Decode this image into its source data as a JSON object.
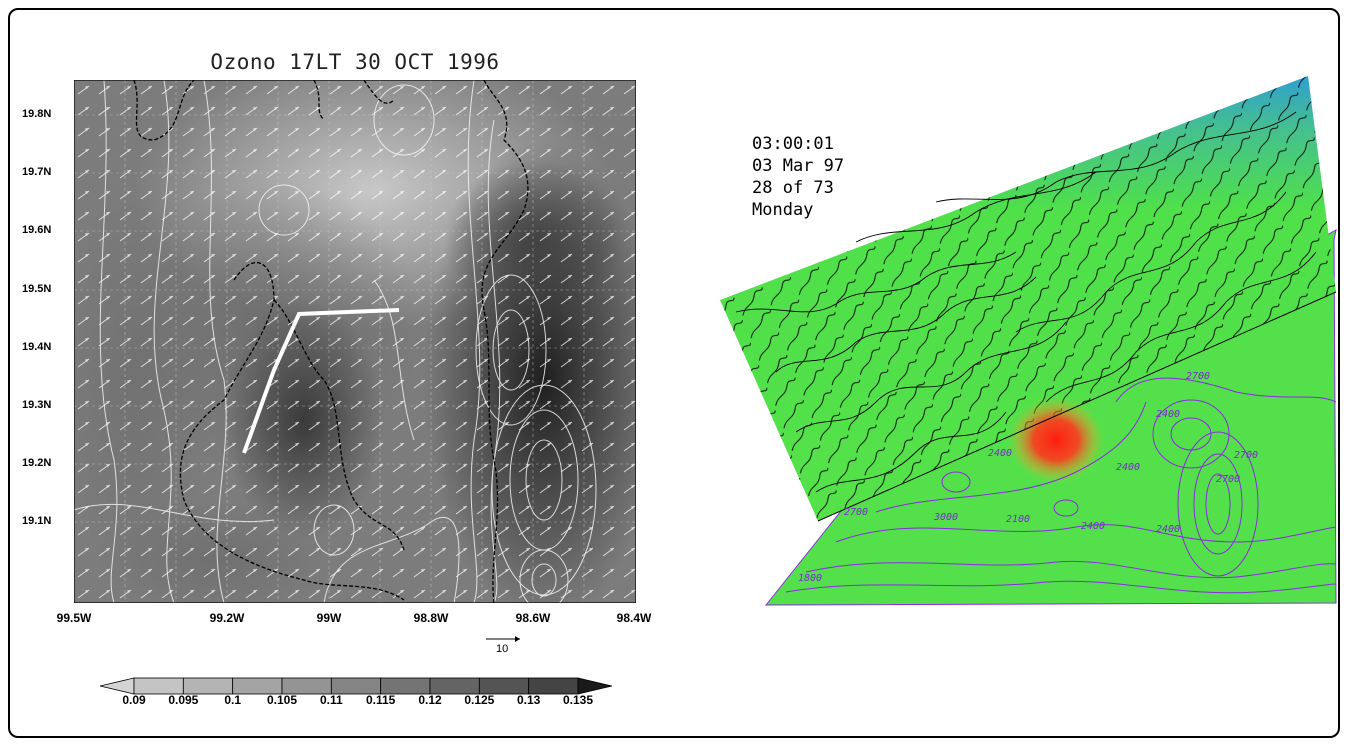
{
  "left_map": {
    "title": "Ozono 17LT 30 OCT 1996",
    "lat_labels": [
      "19.8N",
      "19.7N",
      "19.6N",
      "19.5N",
      "19.4N",
      "19.3N",
      "19.2N",
      "19.1N"
    ],
    "lon_labels": [
      "99.5W",
      "99.2W",
      "99W",
      "98.8W",
      "98.6W",
      "98.4W"
    ],
    "lon_range": [
      -99.5,
      -98.4
    ],
    "lat_range": [
      19.0,
      19.86
    ],
    "vector_scale_label": "10",
    "colorbar_labels": [
      "0.09",
      "0.095",
      "0.1",
      "0.105",
      "0.11",
      "0.115",
      "0.12",
      "0.125",
      "0.13",
      "0.135"
    ],
    "colorbar_colors": [
      "#d4d4d4",
      "#c4c4c4",
      "#b4b4b4",
      "#a4a4a4",
      "#949494",
      "#848484",
      "#747474",
      "#646464",
      "#545454",
      "#444444",
      "#1a1a1a"
    ]
  },
  "right_panel": {
    "time": "03:00:01",
    "date": "03 Mar 97",
    "frame": "28 of 73",
    "day": "Monday",
    "contour_labels": [
      "2700",
      "2400",
      "2400",
      "2700",
      "2400",
      "2700",
      "2400",
      "2100",
      "3000",
      "2700",
      "2400",
      "1800"
    ],
    "colors": {
      "terrain_low": "#4fe04a",
      "terrain_high": "#3aa9c9",
      "hotspot": "#ff2a1a",
      "contour": "#8a2be2",
      "streamline": "#000000"
    }
  }
}
